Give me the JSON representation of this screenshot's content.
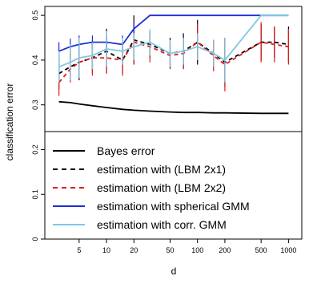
{
  "chart_data": {
    "type": "line",
    "xlabel": "d",
    "ylabel": "classification error",
    "xscale": "log",
    "x": [
      3,
      4,
      5,
      7,
      10,
      15,
      20,
      30,
      50,
      70,
      100,
      150,
      200,
      500,
      700,
      1000
    ],
    "xticks": [
      5,
      10,
      20,
      50,
      100,
      200,
      500,
      1000
    ],
    "yticks": [
      0.0,
      0.1,
      0.2,
      0.3,
      0.4,
      0.5
    ],
    "ylim": [
      0.0,
      0.52
    ],
    "grid": false,
    "legend_position": "bottom-left, inside plot",
    "series": [
      {
        "name": "Bayes error",
        "color": "#000000",
        "dash": "solid",
        "values": [
          0.307,
          0.305,
          0.302,
          0.298,
          0.294,
          0.29,
          0.288,
          0.286,
          0.284,
          0.283,
          0.283,
          0.282,
          0.282,
          0.281,
          0.281,
          0.281
        ]
      },
      {
        "name": "estimation with (LBM 2x1)",
        "color": "#000000",
        "dash": "dashed",
        "values": [
          0.37,
          0.385,
          0.395,
          0.405,
          0.42,
          0.4,
          0.445,
          0.435,
          0.415,
          0.42,
          0.44,
          0.415,
          0.395,
          0.44,
          0.44,
          0.435
        ],
        "errors": [
          0.035,
          0.03,
          0.04,
          0.035,
          0.05,
          0.03,
          0.055,
          0.03,
          0.035,
          0.04,
          0.05,
          0.03,
          0.055,
          0.04,
          0.035,
          0.04
        ]
      },
      {
        "name": "estimation with (LBM 2x2)",
        "color": "#e31a1c",
        "dash": "dashed",
        "values": [
          0.35,
          0.38,
          0.395,
          0.405,
          0.405,
          0.4,
          0.44,
          0.43,
          0.41,
          0.415,
          0.44,
          0.41,
          0.39,
          0.44,
          0.435,
          0.43
        ],
        "errors": [
          0.03,
          0.03,
          0.035,
          0.04,
          0.035,
          0.035,
          0.05,
          0.035,
          0.03,
          0.035,
          0.04,
          0.035,
          0.06,
          0.045,
          0.04,
          0.04
        ]
      },
      {
        "name": "estimation with spherical GMM",
        "color": "#1f2fd6",
        "dash": "solid",
        "values": [
          0.42,
          0.43,
          0.435,
          0.44,
          0.44,
          0.435,
          0.47,
          0.5,
          0.5,
          0.5,
          0.5,
          0.5,
          0.5,
          0.5,
          0.5,
          0.5
        ],
        "errors": [
          0.02,
          0.018,
          0.02,
          0.015,
          0.015,
          0.02,
          0.02,
          0.0,
          0.0,
          0.0,
          0.0,
          0.0,
          0.0,
          0.0,
          0.0,
          0.0
        ]
      },
      {
        "name": "estimation with corr. GMM",
        "color": "#7ec8e3",
        "dash": "solid",
        "values": [
          0.385,
          0.395,
          0.405,
          0.41,
          0.425,
          0.42,
          0.43,
          0.44,
          0.415,
          0.42,
          0.43,
          0.415,
          0.4,
          0.5,
          0.5,
          0.5
        ],
        "errors": [
          0.035,
          0.04,
          0.045,
          0.03,
          0.04,
          0.03,
          0.03,
          0.03,
          0.03,
          0.03,
          0.03,
          0.03,
          0.05,
          0.0,
          0.0,
          0.0
        ]
      }
    ]
  }
}
